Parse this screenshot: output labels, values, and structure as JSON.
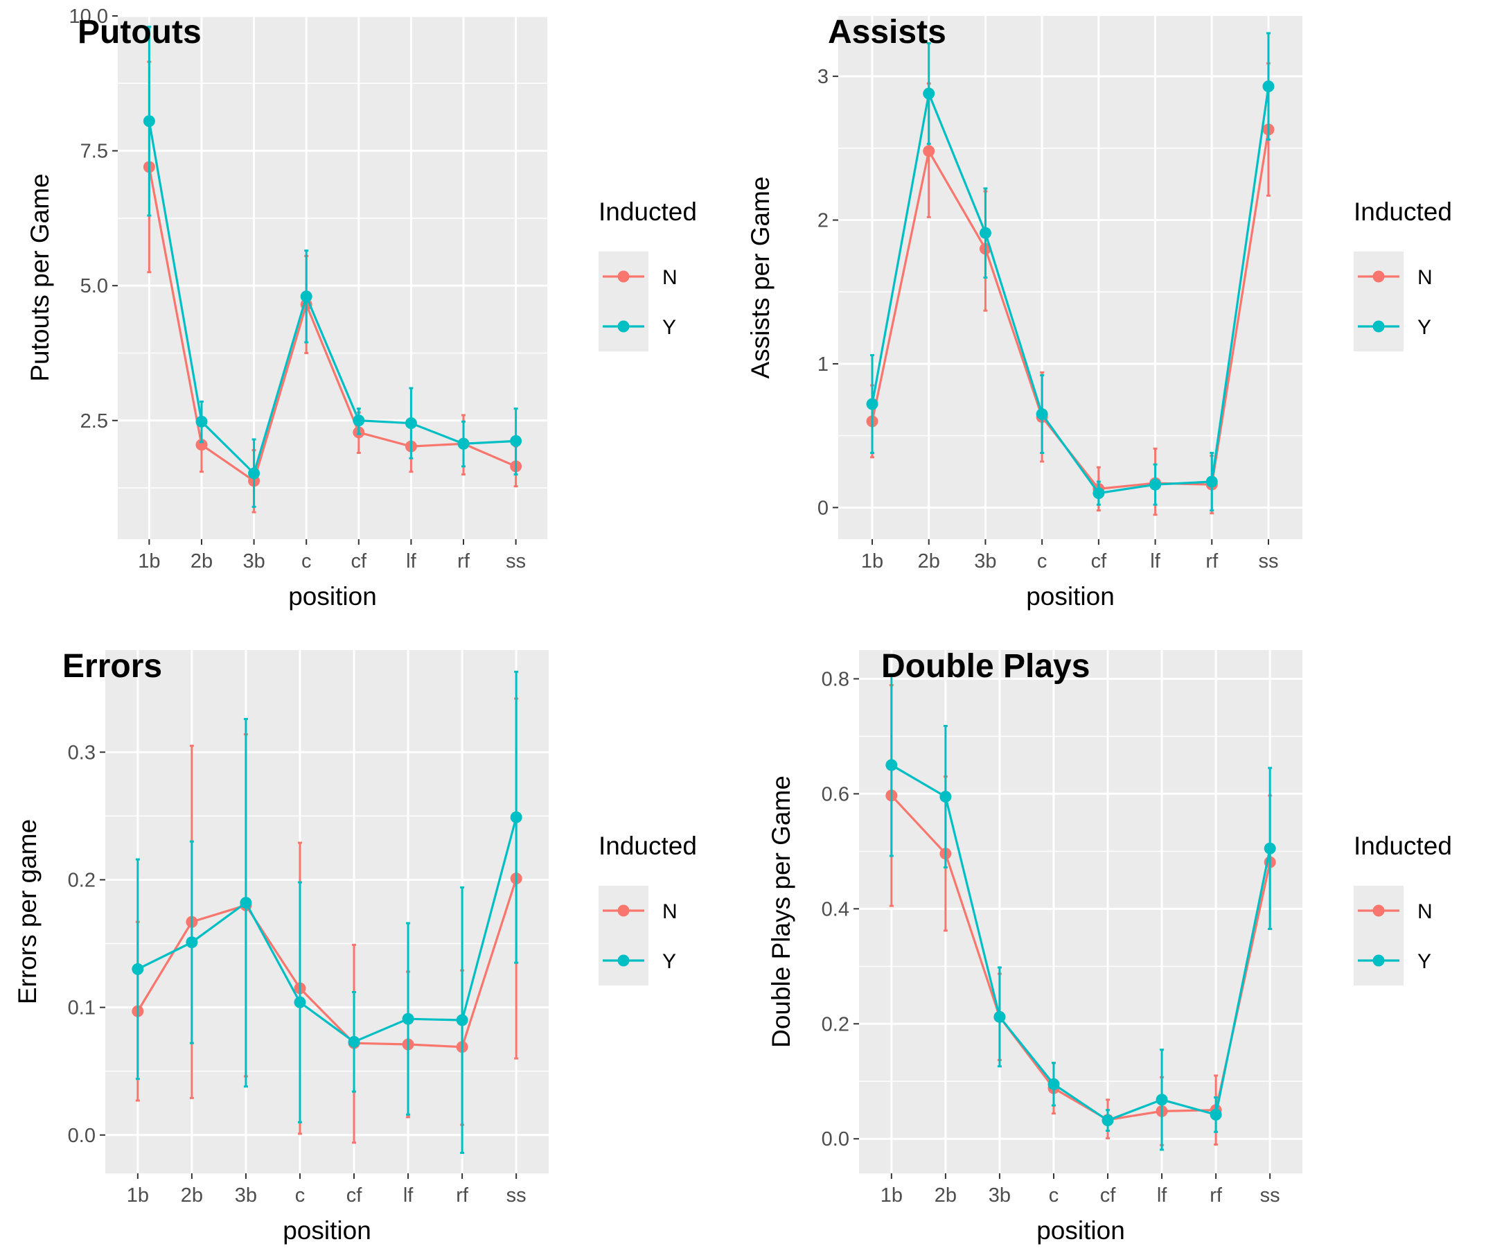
{
  "colors": {
    "N": "#F8766D",
    "Y": "#00BFC4",
    "panel_bg": "#EBEBEB",
    "grid": "#FFFFFF"
  },
  "legend": {
    "title": "Inducted",
    "entries": [
      "N",
      "Y"
    ]
  },
  "chart_data": [
    {
      "type": "line",
      "title": "Putouts",
      "xlabel": "position",
      "ylabel": "Putouts per Game",
      "categories": [
        "1b",
        "2b",
        "3b",
        "c",
        "cf",
        "lf",
        "rf",
        "ss"
      ],
      "yticks": [
        2.5,
        5.0,
        7.5,
        10.0
      ],
      "ytick_labels": [
        "2.5",
        "5.0",
        "7.5",
        "10.0"
      ],
      "ylim": [
        0.3,
        10.0
      ],
      "grid": true,
      "legend_position": "right",
      "series": [
        {
          "name": "N",
          "values": [
            7.2,
            2.05,
            1.38,
            4.65,
            2.28,
            2.02,
            2.07,
            1.65
          ],
          "lower": [
            5.25,
            1.55,
            0.8,
            3.75,
            1.9,
            1.55,
            1.5,
            1.28
          ],
          "upper": [
            9.15,
            2.55,
            1.95,
            5.55,
            2.65,
            2.5,
            2.6,
            2.02
          ]
        },
        {
          "name": "Y",
          "values": [
            8.05,
            2.48,
            1.52,
            4.8,
            2.5,
            2.45,
            2.07,
            2.12
          ],
          "lower": [
            6.3,
            2.1,
            0.9,
            3.95,
            2.25,
            1.8,
            1.65,
            1.5
          ],
          "upper": [
            9.8,
            2.85,
            2.15,
            5.65,
            2.72,
            3.1,
            2.48,
            2.72
          ]
        }
      ]
    },
    {
      "type": "line",
      "title": "Assists",
      "xlabel": "position",
      "ylabel": "Assists per Game",
      "categories": [
        "1b",
        "2b",
        "3b",
        "c",
        "cf",
        "lf",
        "rf",
        "ss"
      ],
      "yticks": [
        0,
        1,
        2,
        3
      ],
      "ytick_labels": [
        "0",
        "1",
        "2",
        "3"
      ],
      "ylim": [
        -0.22,
        3.42
      ],
      "grid": true,
      "legend_position": "right",
      "series": [
        {
          "name": "N",
          "values": [
            0.6,
            2.48,
            1.8,
            0.63,
            0.13,
            0.17,
            0.16,
            2.63
          ],
          "lower": [
            0.35,
            2.02,
            1.37,
            0.32,
            -0.02,
            -0.05,
            -0.04,
            2.17
          ],
          "upper": [
            0.85,
            2.95,
            2.2,
            0.94,
            0.28,
            0.41,
            0.36,
            3.09
          ]
        },
        {
          "name": "Y",
          "values": [
            0.72,
            2.88,
            1.91,
            0.65,
            0.1,
            0.16,
            0.18,
            2.93
          ],
          "lower": [
            0.38,
            2.53,
            1.6,
            0.38,
            0.02,
            0.02,
            -0.02,
            2.56
          ],
          "upper": [
            1.06,
            3.23,
            2.22,
            0.92,
            0.18,
            0.3,
            0.38,
            3.3
          ]
        }
      ]
    },
    {
      "type": "line",
      "title": "Errors",
      "xlabel": "position",
      "ylabel": "Errors per game",
      "categories": [
        "1b",
        "2b",
        "3b",
        "c",
        "cf",
        "lf",
        "rf",
        "ss"
      ],
      "yticks": [
        0.0,
        0.1,
        0.2,
        0.3
      ],
      "ytick_labels": [
        "0.0",
        "0.1",
        "0.2",
        "0.3"
      ],
      "ylim": [
        -0.03,
        0.38
      ],
      "grid": true,
      "legend_position": "right",
      "series": [
        {
          "name": "N",
          "values": [
            0.097,
            0.167,
            0.18,
            0.115,
            0.072,
            0.071,
            0.069,
            0.201
          ],
          "lower": [
            0.027,
            0.029,
            0.046,
            0.001,
            -0.006,
            0.014,
            0.008,
            0.06
          ],
          "upper": [
            0.167,
            0.305,
            0.314,
            0.229,
            0.149,
            0.128,
            0.129,
            0.342
          ]
        },
        {
          "name": "Y",
          "values": [
            0.13,
            0.151,
            0.182,
            0.104,
            0.073,
            0.091,
            0.09,
            0.249
          ],
          "lower": [
            0.044,
            0.072,
            0.038,
            0.01,
            0.034,
            0.016,
            -0.014,
            0.135
          ],
          "upper": [
            0.216,
            0.23,
            0.326,
            0.198,
            0.112,
            0.166,
            0.194,
            0.363
          ]
        }
      ]
    },
    {
      "type": "line",
      "title": "Double Plays",
      "xlabel": "position",
      "ylabel": "Double Plays per Game",
      "categories": [
        "1b",
        "2b",
        "3b",
        "c",
        "cf",
        "lf",
        "rf",
        "ss"
      ],
      "yticks": [
        0.0,
        0.2,
        0.4,
        0.6,
        0.8
      ],
      "ytick_labels": [
        "0.0",
        "0.2",
        "0.4",
        "0.6",
        "0.8"
      ],
      "ylim": [
        -0.06,
        0.85
      ],
      "grid": true,
      "legend_position": "right",
      "series": [
        {
          "name": "N",
          "values": [
            0.597,
            0.496,
            0.212,
            0.088,
            0.033,
            0.048,
            0.05,
            0.481
          ],
          "lower": [
            0.405,
            0.362,
            0.137,
            0.044,
            0.001,
            -0.011,
            -0.01,
            0.365
          ],
          "upper": [
            0.789,
            0.63,
            0.287,
            0.132,
            0.068,
            0.107,
            0.11,
            0.597
          ]
        },
        {
          "name": "Y",
          "values": [
            0.65,
            0.595,
            0.212,
            0.095,
            0.032,
            0.068,
            0.042,
            0.505
          ],
          "lower": [
            0.492,
            0.472,
            0.126,
            0.058,
            0.014,
            -0.019,
            0.012,
            0.365
          ],
          "upper": [
            0.808,
            0.718,
            0.298,
            0.132,
            0.05,
            0.155,
            0.072,
            0.645
          ]
        }
      ]
    }
  ]
}
